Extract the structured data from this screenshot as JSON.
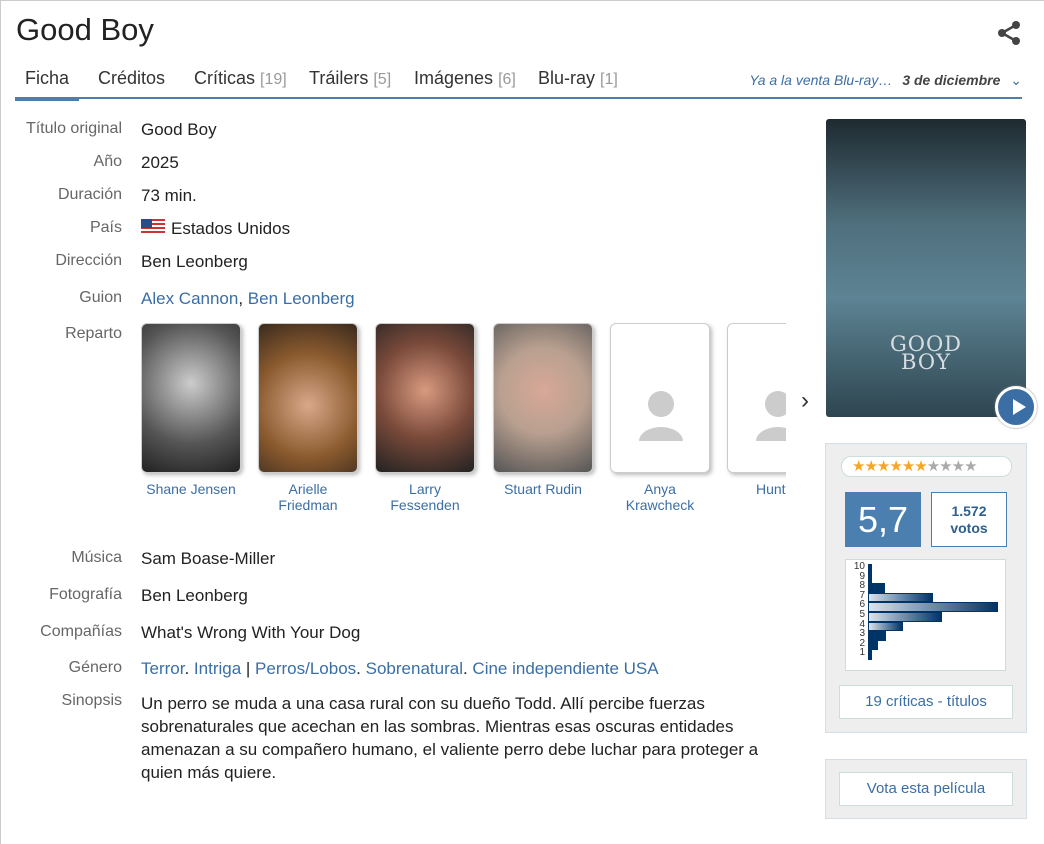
{
  "title": "Good Boy",
  "tabs": [
    {
      "label": "Ficha",
      "count": ""
    },
    {
      "label": "Créditos",
      "count": ""
    },
    {
      "label": "Críticas",
      "count": "[19]"
    },
    {
      "label": "Tráilers",
      "count": "[5]"
    },
    {
      "label": "Imágenes",
      "count": "[6]"
    },
    {
      "label": "Blu-ray",
      "count": "[1]"
    }
  ],
  "promo": {
    "text": "Ya a la venta Blu-ray…",
    "date": "3 de diciembre"
  },
  "info": {
    "original_title_label": "Título original",
    "original_title": "Good Boy",
    "year_label": "Año",
    "year": "2025",
    "duration_label": "Duración",
    "duration": "73 min.",
    "country_label": "País",
    "country": "Estados Unidos",
    "director_label": "Dirección",
    "director": "Ben Leonberg",
    "writers_label": "Guion",
    "writers": [
      "Alex Cannon",
      "Ben Leonberg"
    ],
    "cast_label": "Reparto",
    "music_label": "Música",
    "music": "Sam Boase-Miller",
    "photo_label": "Fotografía",
    "photography": "Ben Leonberg",
    "companies_label": "Compañías",
    "companies": "What's Wrong With Your Dog",
    "genre_label": "Género",
    "genres": [
      "Terror",
      "Intriga",
      "Perros/Lobos",
      "Sobrenatural",
      "Cine independiente USA"
    ],
    "synopsis_label": "Sinopsis",
    "synopsis": "Un perro se muda a una casa rural con su dueño Todd. Allí percibe fuerzas sobrenaturales que acechan en las sombras. Mientras esas oscuras entidades amenazan a su compañero humano, el valiente perro debe luchar para proteger a quien más quiere."
  },
  "cast": [
    "Shane Jensen",
    "Arielle Friedman",
    "Larry Fessenden",
    "Stuart Rudin",
    "Anya Krawcheck",
    "Hunter"
  ],
  "poster": {
    "title": "GOOD BOY"
  },
  "rating": {
    "score": "5,7",
    "score_value": 5.7,
    "stars_max": 10,
    "votes": "1.572",
    "votes_label": "votos",
    "histogram": {
      "labels": [
        "10",
        "9",
        "8",
        "7",
        "6",
        "5",
        "4",
        "3",
        "2",
        "1"
      ],
      "relative": [
        1,
        3,
        13,
        50,
        100,
        57,
        27,
        14,
        8,
        3
      ]
    }
  },
  "reviews_button": "19 críticas - títulos",
  "vote_button": "Vota esta película",
  "colors": {
    "accent": "#4a7fb0",
    "link": "#3b6ea5",
    "star": "#f5a623"
  }
}
